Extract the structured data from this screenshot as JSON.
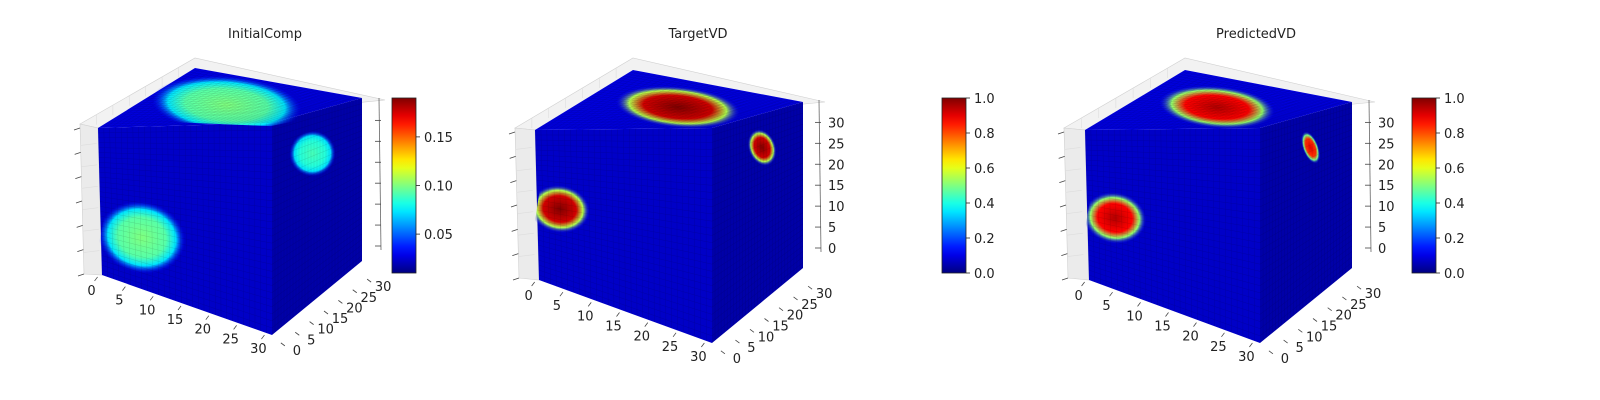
{
  "chart_data": [
    {
      "type": "heatmap",
      "title": "InitialComp",
      "x_ticks": [
        "0",
        "5",
        "10",
        "15",
        "20",
        "25",
        "30"
      ],
      "y_ticks": [
        "0",
        "5",
        "10",
        "15",
        "20",
        "25",
        "30"
      ],
      "z_ticks": [],
      "xlim": [
        0,
        32
      ],
      "ylim": [
        0,
        32
      ],
      "zlim": [
        0,
        32
      ],
      "colormap": "jet",
      "colorbar": {
        "min": 0.01,
        "max": 0.19,
        "ticks": [
          "0.05",
          "0.10",
          "0.15"
        ],
        "tick_values": [
          0.05,
          0.1,
          0.15
        ]
      },
      "blobs": [
        {
          "face": "top",
          "cx": 0.48,
          "cy": 0.52,
          "rx": 0.44,
          "ry": 0.28,
          "value": 0.1
        },
        {
          "face": "front",
          "cx": 0.24,
          "cy": 0.68,
          "rx": 0.25,
          "ry": 0.22,
          "value": 0.1
        },
        {
          "face": "right",
          "cx": 0.45,
          "cy": 0.22,
          "rx": 0.24,
          "ry": 0.12,
          "value": 0.09
        }
      ]
    },
    {
      "type": "heatmap",
      "title": "TargetVD",
      "x_ticks": [
        "0",
        "5",
        "10",
        "15",
        "20",
        "25",
        "30"
      ],
      "y_ticks": [
        "0",
        "5",
        "10",
        "15",
        "20",
        "25",
        "30"
      ],
      "z_ticks": [
        "0",
        "5",
        "10",
        "15",
        "20",
        "25",
        "30"
      ],
      "xlim": [
        0,
        32
      ],
      "ylim": [
        0,
        32
      ],
      "zlim": [
        0,
        32
      ],
      "colormap": "jet",
      "colorbar": {
        "min": 0.0,
        "max": 1.0,
        "ticks": [
          "0.0",
          "0.2",
          "0.4",
          "0.6",
          "0.8",
          "1.0"
        ],
        "tick_values": [
          0.0,
          0.2,
          0.4,
          0.6,
          0.8,
          1.0
        ]
      },
      "blobs": [
        {
          "face": "top",
          "cx": 0.53,
          "cy": 0.48,
          "rx": 0.36,
          "ry": 0.2,
          "value": 1.0
        },
        {
          "face": "front",
          "cx": 0.13,
          "cy": 0.5,
          "rx": 0.17,
          "ry": 0.15,
          "value": 1.0
        },
        {
          "face": "right",
          "cx": 0.55,
          "cy": 0.18,
          "rx": 0.14,
          "ry": 0.1,
          "value": 1.0
        }
      ]
    },
    {
      "type": "heatmap",
      "title": "PredictedVD",
      "x_ticks": [
        "0",
        "5",
        "10",
        "15",
        "20",
        "25",
        "30"
      ],
      "y_ticks": [
        "0",
        "5",
        "10",
        "15",
        "20",
        "25",
        "30"
      ],
      "z_ticks": [
        "0",
        "5",
        "10",
        "15",
        "20",
        "25",
        "30"
      ],
      "xlim": [
        0,
        32
      ],
      "ylim": [
        0,
        32
      ],
      "zlim": [
        0,
        32
      ],
      "colormap": "jet",
      "colorbar": {
        "min": 0.0,
        "max": 1.0,
        "ticks": [
          "0.0",
          "0.2",
          "0.4",
          "0.6",
          "0.8",
          "1.0"
        ],
        "tick_values": [
          0.0,
          0.2,
          0.4,
          0.6,
          0.8,
          1.0
        ]
      },
      "blobs": [
        {
          "face": "top",
          "cx": 0.48,
          "cy": 0.5,
          "rx": 0.34,
          "ry": 0.2,
          "value": 0.95
        },
        {
          "face": "front",
          "cx": 0.16,
          "cy": 0.55,
          "rx": 0.18,
          "ry": 0.16,
          "value": 0.95
        },
        {
          "face": "right",
          "cx": 0.55,
          "cy": 0.18,
          "rx": 0.08,
          "ry": 0.09,
          "value": 0.9
        }
      ]
    }
  ]
}
